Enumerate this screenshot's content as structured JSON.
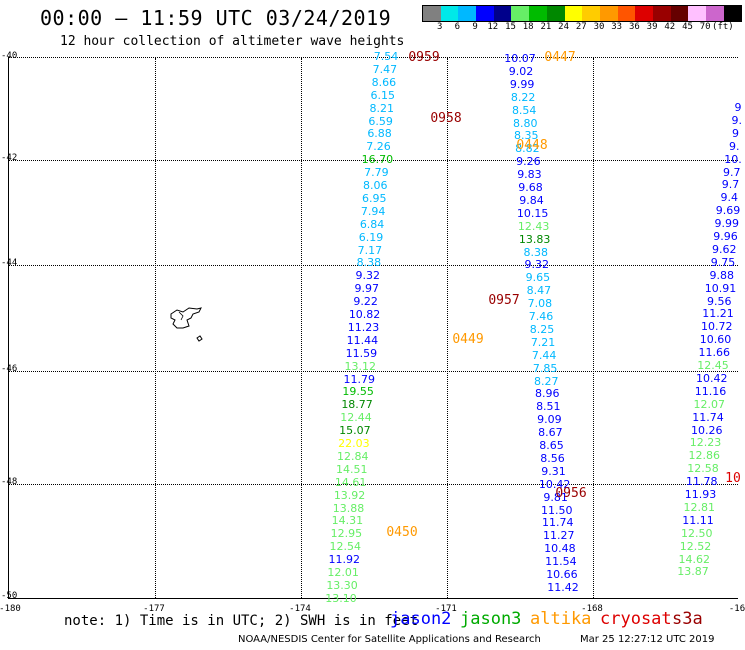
{
  "title": "00:00 – 11:59 UTC 03/24/2019",
  "subtitle": "12 hour collection of altimeter wave heights",
  "colorbar": {
    "colors": [
      "#808080",
      "#00e8e8",
      "#00b8ff",
      "#0000ff",
      "#00008b",
      "#66ee66",
      "#00bb00",
      "#008800",
      "#ffff00",
      "#ffcc00",
      "#ff9900",
      "#ff5500",
      "#dd0000",
      "#990000",
      "#660000",
      "#ffc0ff",
      "#cc66cc",
      "#000000"
    ],
    "labels": [
      "3",
      "6",
      "9",
      "12",
      "15",
      "18",
      "21",
      "24",
      "27",
      "30",
      "33",
      "36",
      "39",
      "42",
      "45",
      "70",
      "(ft)"
    ]
  },
  "axes": {
    "y_labels": [
      "40",
      "42",
      "44",
      "46",
      "48",
      "50"
    ],
    "x_labels": [
      "-180",
      "-177",
      "-174",
      "-171",
      "-168",
      "-16"
    ]
  },
  "tracks": {
    "t1": {
      "values": [
        "7.54",
        "7.47",
        "8.66",
        "6.15",
        "8.21",
        "6.59",
        "6.88",
        "7.26",
        "16.70",
        "7.79",
        "8.06",
        "6.95",
        "7.94",
        "6.84",
        "6.19",
        "7.17",
        "8.38",
        "9.32",
        "9.97",
        "9.22",
        "10.82",
        "11.23",
        "11.44",
        "11.59",
        "13.12",
        "11.79",
        "19.55",
        "18.77",
        "12.44",
        "15.07",
        "22.03",
        "12.84",
        "14.51",
        "14.61",
        "13.92",
        "13.88",
        "14.31",
        "12.95",
        "12.54",
        "11.92",
        "12.01",
        "13.30",
        "13.10"
      ],
      "colors": [
        "#00b8ff",
        "#00b8ff",
        "#00b8ff",
        "#00b8ff",
        "#00b8ff",
        "#00b8ff",
        "#00b8ff",
        "#00b8ff",
        "#00bb00",
        "#00b8ff",
        "#00b8ff",
        "#00b8ff",
        "#00b8ff",
        "#00b8ff",
        "#00b8ff",
        "#00b8ff",
        "#00b8ff",
        "#0000ff",
        "#0000ff",
        "#0000ff",
        "#0000ff",
        "#0000ff",
        "#0000ff",
        "#0000ff",
        "#66ee66",
        "#0000ff",
        "#00bb00",
        "#008800",
        "#66ee66",
        "#008800",
        "#ffff00",
        "#66ee66",
        "#66ee66",
        "#66ee66",
        "#66ee66",
        "#66ee66",
        "#66ee66",
        "#66ee66",
        "#66ee66",
        "#0000ff",
        "#66ee66",
        "#66ee66",
        "#66ee66"
      ]
    },
    "t2": {
      "values": [
        "10.07",
        "9.02",
        "9.99",
        "8.22",
        "8.54",
        "8.80",
        "8.35",
        "8.82",
        "9.26",
        "9.83",
        "9.68",
        "9.84",
        "10.15",
        "12.43",
        "13.83",
        "8.38",
        "9.32",
        "9.65",
        "8.47",
        "7.08",
        "7.46",
        "8.25",
        "7.21",
        "7.44",
        "7.85",
        "8.27",
        "8.96",
        "8.51",
        "9.09",
        "8.67",
        "8.65",
        "8.56",
        "9.31",
        "10.42",
        "9.81",
        "11.50",
        "11.74",
        "11.27",
        "10.48",
        "11.54",
        "10.66",
        "11.42"
      ],
      "colors": [
        "#0000ff",
        "#0000ff",
        "#0000ff",
        "#00b8ff",
        "#00b8ff",
        "#00b8ff",
        "#00b8ff",
        "#00b8ff",
        "#0000ff",
        "#0000ff",
        "#0000ff",
        "#0000ff",
        "#0000ff",
        "#66ee66",
        "#008800",
        "#00b8ff",
        "#0000ff",
        "#00b8ff",
        "#00b8ff",
        "#00b8ff",
        "#00b8ff",
        "#00b8ff",
        "#00b8ff",
        "#00b8ff",
        "#00b8ff",
        "#00b8ff",
        "#0000ff",
        "#0000ff",
        "#0000ff",
        "#0000ff",
        "#0000ff",
        "#0000ff",
        "#0000ff",
        "#0000ff",
        "#0000ff",
        "#0000ff",
        "#0000ff",
        "#0000ff",
        "#0000ff",
        "#0000ff",
        "#0000ff",
        "#0000ff"
      ]
    },
    "t3": {
      "values": [
        "9",
        "9.",
        "9",
        "9.",
        "10.",
        "9.7",
        "9.7",
        "9.4",
        "9.69",
        "9.99",
        "9.96",
        "9.62",
        "9.75",
        "9.88",
        "10.91",
        "9.56",
        "11.21",
        "10.72",
        "10.60",
        "11.66",
        "12.45",
        "10.42",
        "11.16",
        "12.07",
        "11.74",
        "10.26",
        "12.23",
        "12.86",
        "12.58",
        "11.78",
        "11.93",
        "12.81",
        "11.11",
        "12.50",
        "12.52",
        "14.62",
        "13.87"
      ],
      "colors": [
        "#0000ff",
        "#0000ff",
        "#0000ff",
        "#0000ff",
        "#0000ff",
        "#0000ff",
        "#0000ff",
        "#0000ff",
        "#0000ff",
        "#0000ff",
        "#0000ff",
        "#0000ff",
        "#0000ff",
        "#0000ff",
        "#0000ff",
        "#0000ff",
        "#0000ff",
        "#0000ff",
        "#0000ff",
        "#0000ff",
        "#66ee66",
        "#0000ff",
        "#0000ff",
        "#66ee66",
        "#0000ff",
        "#0000ff",
        "#66ee66",
        "#66ee66",
        "#66ee66",
        "#0000ff",
        "#0000ff",
        "#66ee66",
        "#0000ff",
        "#66ee66",
        "#66ee66",
        "#66ee66",
        "#66ee66"
      ]
    }
  },
  "time_labels": [
    {
      "text": "0959",
      "color": "#990000"
    },
    {
      "text": "0447",
      "color": "#ff9900"
    },
    {
      "text": "0958",
      "color": "#990000"
    },
    {
      "text": "0448",
      "color": "#ff9900"
    },
    {
      "text": "0957",
      "color": "#990000"
    },
    {
      "text": "0449",
      "color": "#ff9900"
    },
    {
      "text": "0956",
      "color": "#990000"
    },
    {
      "text": "0450",
      "color": "#ff9900"
    },
    {
      "text": "10",
      "color": "#dd0000"
    }
  ],
  "note": "note: 1) Time is in UTC; 2) SWH is in feet",
  "legend": [
    {
      "name": "jason2",
      "color": "#0000ff"
    },
    {
      "name": "jason3",
      "color": "#00aa00"
    },
    {
      "name": "altika",
      "color": "#ff9900"
    },
    {
      "name": "cryosat",
      "color": "#dd0000"
    },
    {
      "name": "s3a",
      "color": "#990000"
    }
  ],
  "footer": "NOAA/NESDIS Center for Satellite Applications and Research",
  "footer_time": "Mar 25 12:27:12 UTC 2019"
}
